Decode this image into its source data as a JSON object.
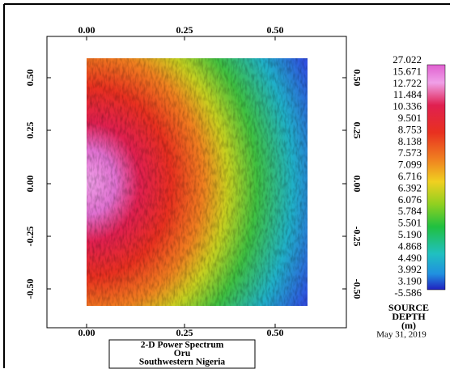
{
  "axes": {
    "x_ticks_top": [
      "0.00",
      "0.25",
      "0.50"
    ],
    "x_ticks_bottom": [
      "0.00",
      "0.25",
      "0.50"
    ],
    "y_ticks_left": [
      "0.50",
      "0.25",
      "0.00",
      "-0.25",
      "-0.50"
    ],
    "y_ticks_right": [
      "0.50",
      "0.25",
      "0.00",
      "-0.25",
      "-0.50"
    ]
  },
  "legend": {
    "labels": [
      "27.022",
      "15.671",
      "12.722",
      "11.484",
      "10.336",
      "9.501",
      "8.753",
      "8.138",
      "7.573",
      "7.099",
      "6.716",
      "6.392",
      "6.076",
      "5.784",
      "5.501",
      "5.190",
      "4.868",
      "4.490",
      "3.992",
      "3.190",
      "-5.586"
    ],
    "title": [
      "SOURCE",
      "DEPTH",
      "(m)"
    ],
    "date": "May 31, 2019"
  },
  "title_box": [
    "2-D Power Spectrum",
    "Oru",
    "Southwestern Nigeria"
  ]
}
